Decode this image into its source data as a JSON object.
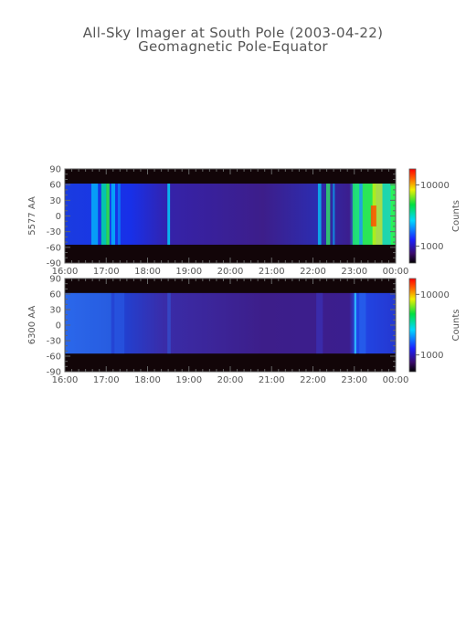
{
  "title": "All-Sky Imager at South Pole (2003-04-22)",
  "subtitle": "Geomagnetic Pole-Equator",
  "chart_data": [
    {
      "type": "heatmap",
      "ylabel": "5577 AA",
      "colorbar_label": "Counts",
      "colorbar_ticks": [
        "10000",
        "1000"
      ],
      "color_scale": "log",
      "x_ticks": [
        "16:00",
        "17:00",
        "18:00",
        "19:00",
        "20:00",
        "21:00",
        "22:00",
        "23:00",
        "00:00"
      ],
      "y_ticks": [
        "90",
        "60",
        "30",
        "0",
        "-30",
        "-60",
        "-90"
      ],
      "ylim": [
        -90,
        90
      ],
      "xlim": [
        "16:00",
        "00:00"
      ],
      "data_extent_y": [
        -55,
        62
      ]
    },
    {
      "type": "heatmap",
      "ylabel": "6300 AA",
      "colorbar_label": "Counts",
      "colorbar_ticks": [
        "10000",
        "1000"
      ],
      "color_scale": "log",
      "x_ticks": [
        "16:00",
        "17:00",
        "18:00",
        "19:00",
        "20:00",
        "21:00",
        "22:00",
        "23:00",
        "00:00"
      ],
      "y_ticks": [
        "90",
        "60",
        "30",
        "0",
        "-30",
        "-60",
        "-90"
      ],
      "ylim": [
        -90,
        90
      ],
      "xlim": [
        "16:00",
        "00:00"
      ],
      "data_extent_y": [
        -55,
        62
      ]
    }
  ]
}
